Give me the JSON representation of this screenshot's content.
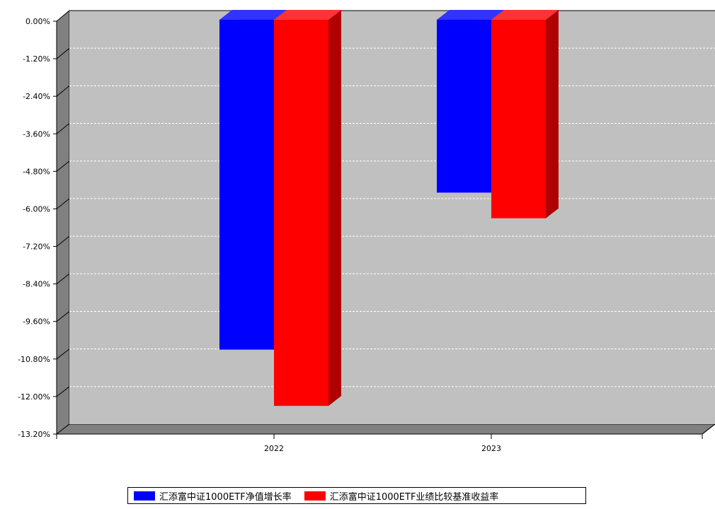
{
  "chart_data": {
    "type": "bar",
    "categories": [
      "2022",
      "2023"
    ],
    "series": [
      {
        "name": "汇添富中证1000ETF净值增长率",
        "values": [
          -10.5,
          -5.48
        ],
        "color": "#0000ff"
      },
      {
        "name": "汇添富中证1000ETF业绩比较基准收益率",
        "values": [
          -12.3,
          -6.3
        ],
        "color": "#ff0000"
      }
    ],
    "ylim": [
      -13.2,
      0
    ],
    "yticks": [
      "0.00%",
      "-1.20%",
      "-2.40%",
      "-3.60%",
      "-4.80%",
      "-6.00%",
      "-7.20%",
      "-8.40%",
      "-9.60%",
      "-10.80%",
      "-12.00%",
      "-13.20%"
    ],
    "grid": true,
    "legend_position": "bottom"
  }
}
